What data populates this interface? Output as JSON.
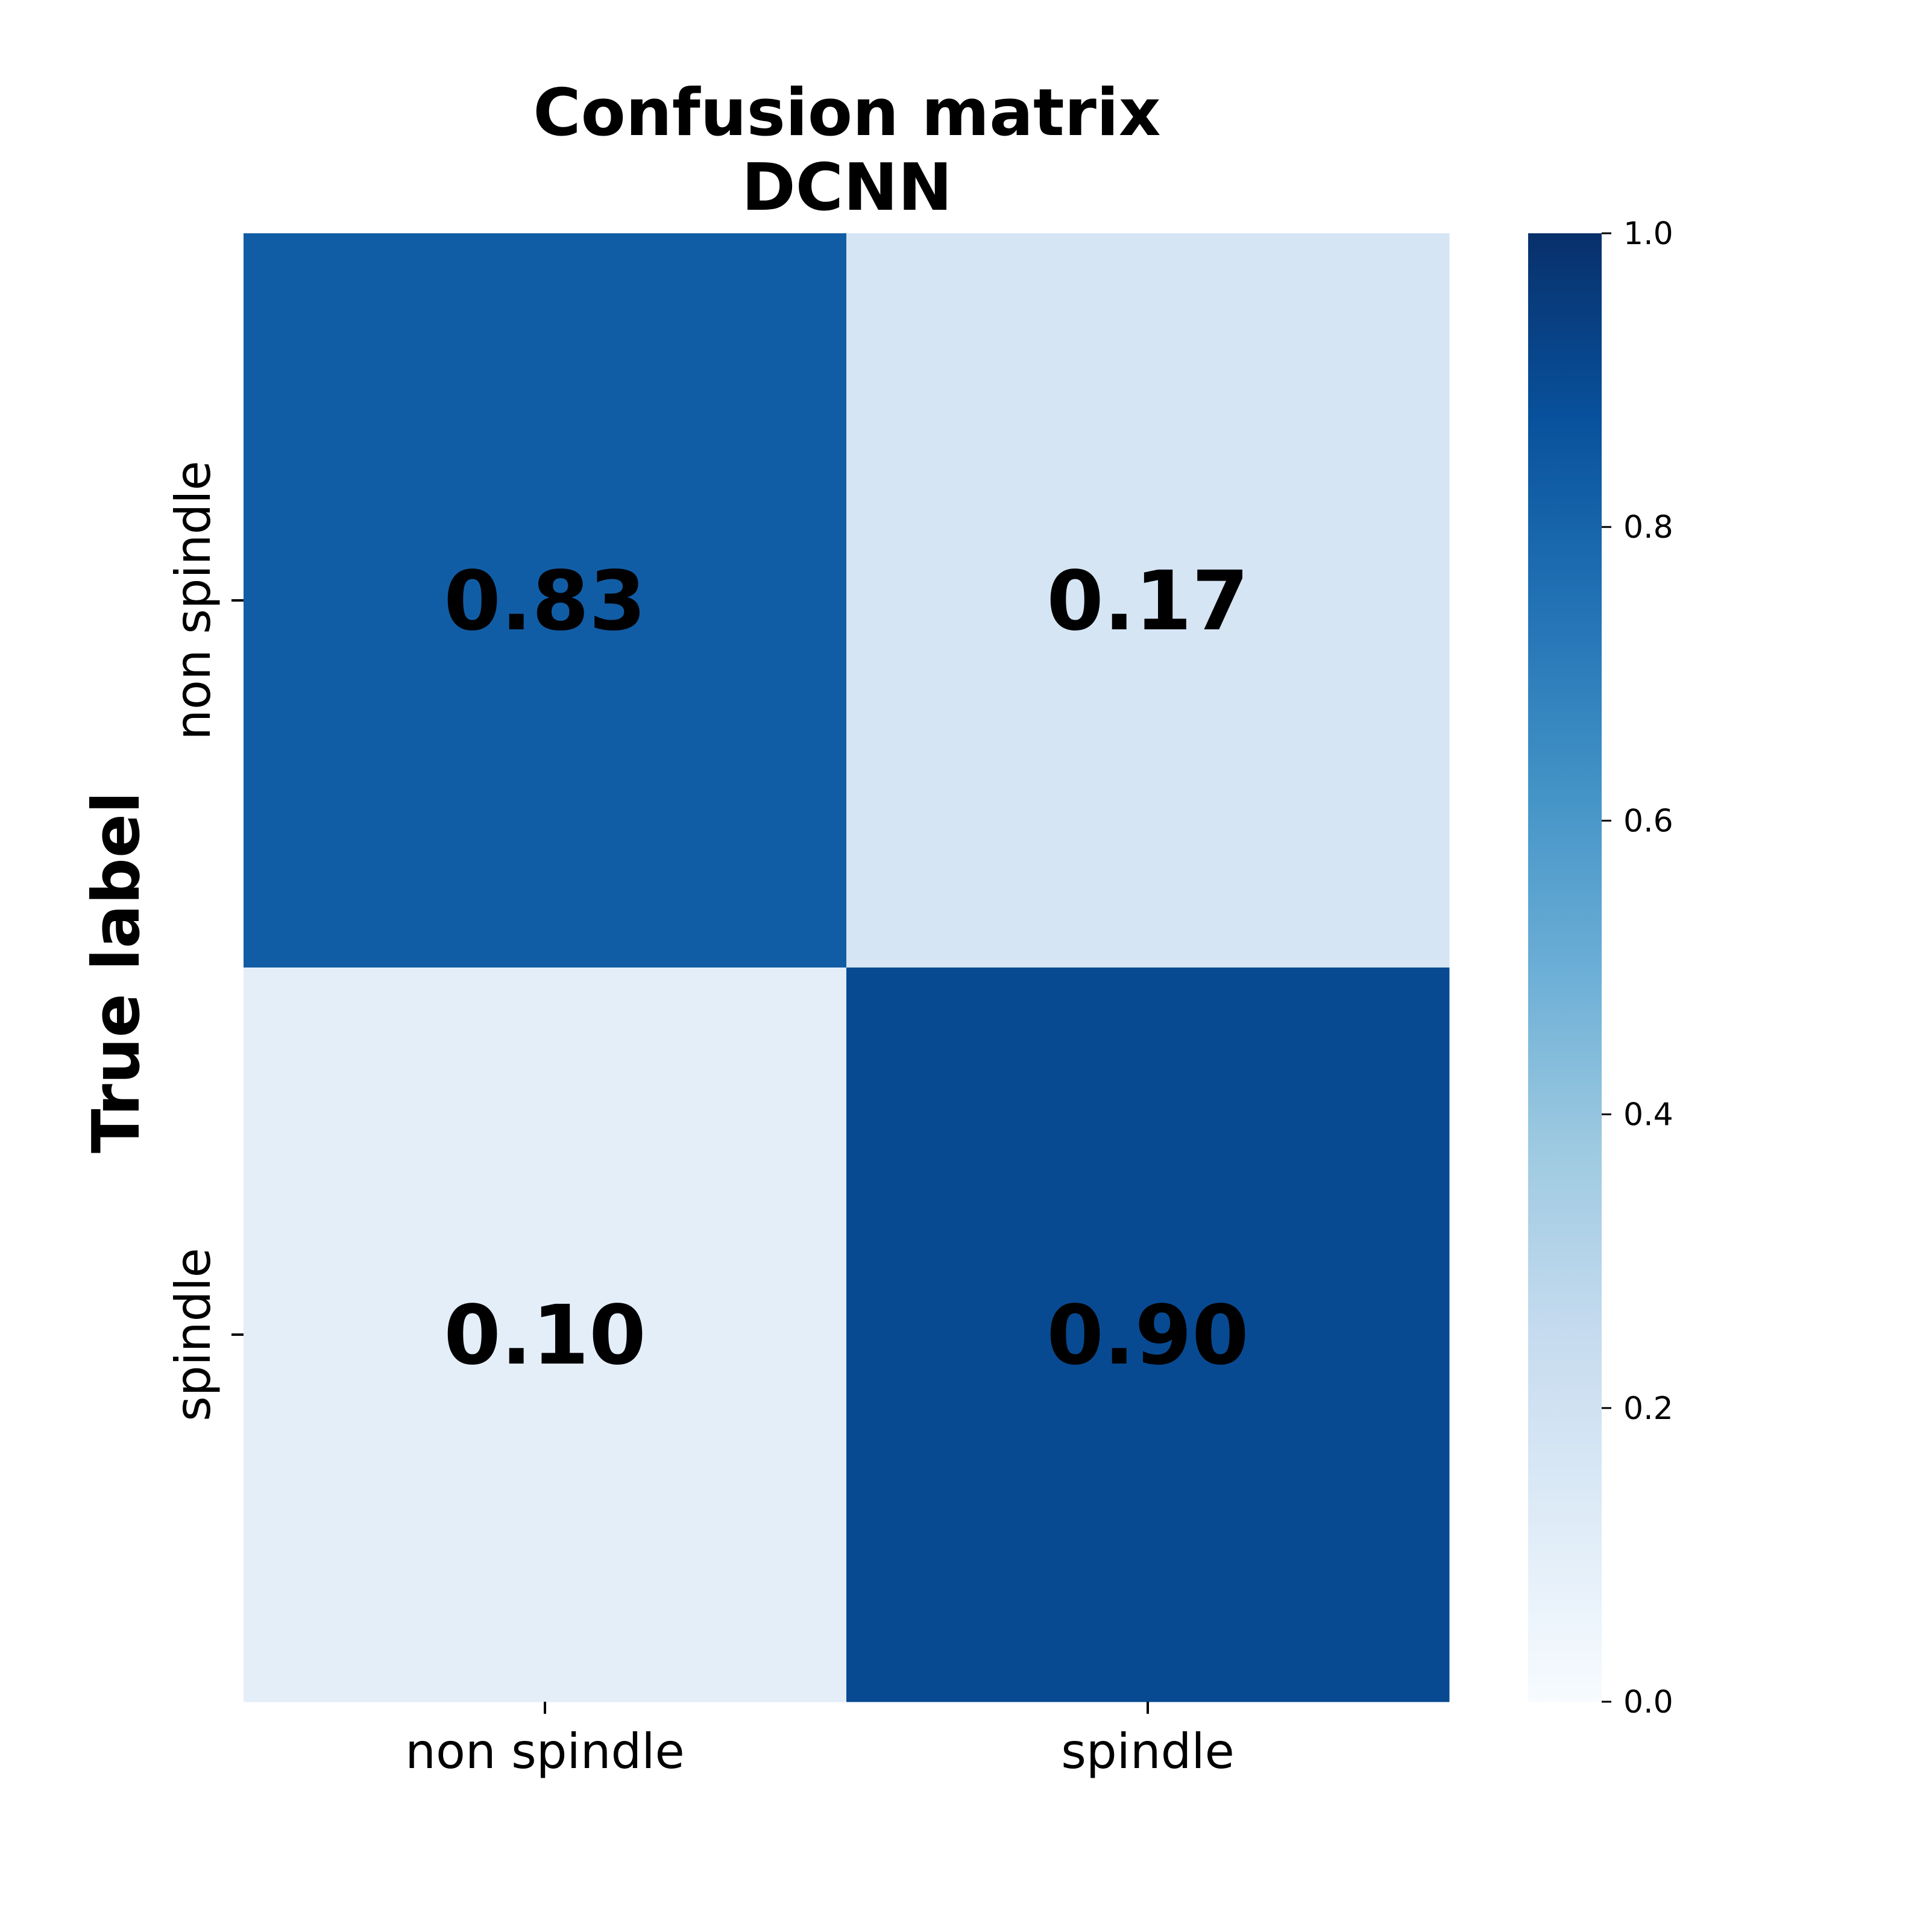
{
  "chart_data": {
    "type": "heatmap",
    "title": [
      "Confusion matrix",
      "DCNN"
    ],
    "ylabel": "True label",
    "xlabel": "",
    "x_categories": [
      "non spindle",
      "spindle"
    ],
    "y_categories": [
      "non spindle",
      "spindle"
    ],
    "values": [
      [
        0.83,
        0.17
      ],
      [
        0.1,
        0.9
      ]
    ],
    "value_labels": [
      [
        "0.83",
        "0.17"
      ],
      [
        "0.10",
        "0.90"
      ]
    ],
    "colorbar": {
      "range": [
        0.0,
        1.0
      ],
      "ticks": [
        0.0,
        0.2,
        0.4,
        0.6,
        0.8,
        1.0
      ],
      "tick_labels": [
        "0.0",
        "0.2",
        "0.4",
        "0.6",
        "0.8",
        "1.0"
      ]
    },
    "colormap": "Blues",
    "colorscale": [
      "#f7fbff",
      "#deebf7",
      "#c6dbef",
      "#9ecae1",
      "#6baed6",
      "#4292c6",
      "#2171b5",
      "#08519c",
      "#08306b"
    ],
    "legend": "right"
  }
}
